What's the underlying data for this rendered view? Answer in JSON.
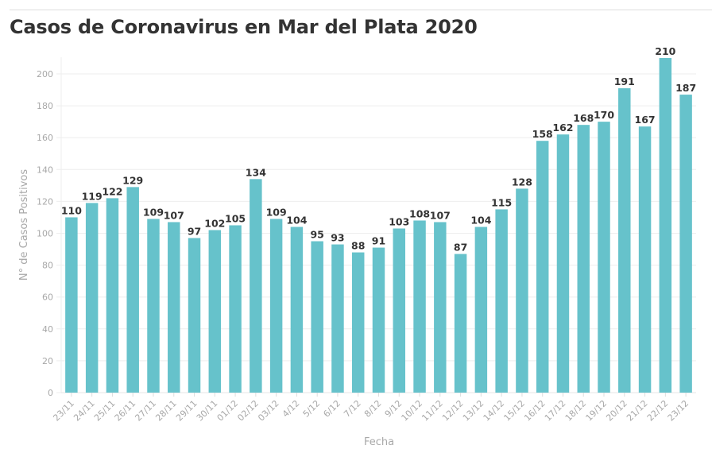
{
  "chart_data": {
    "type": "bar",
    "title": "Casos de Coronavirus en Mar del Plata 2020",
    "xlabel": "Fecha",
    "ylabel": "N° de Casos Positivos",
    "ylim": [
      0,
      210
    ],
    "yticks": [
      0,
      20,
      40,
      60,
      80,
      100,
      120,
      140,
      160,
      180,
      200
    ],
    "grid": true,
    "legend": "none",
    "bar_color": "#66c2cb",
    "categories": [
      "23/11",
      "24/11",
      "25/11",
      "26/11",
      "27/11",
      "28/11",
      "29/11",
      "30/11",
      "01/12",
      "02/12",
      "03/12",
      "4/12",
      "5/12",
      "6/12",
      "7/12",
      "8/12",
      "9/12",
      "10/12",
      "11/12",
      "12/12",
      "13/12",
      "14/12",
      "15/12",
      "16/12",
      "17/12",
      "18/12",
      "19/12",
      "20/12",
      "21/12",
      "22/12",
      "23/12"
    ],
    "values": [
      110,
      119,
      122,
      129,
      109,
      107,
      97,
      102,
      105,
      134,
      109,
      104,
      95,
      93,
      88,
      91,
      103,
      108,
      107,
      87,
      104,
      115,
      128,
      158,
      162,
      168,
      170,
      191,
      167,
      210,
      187
    ]
  }
}
